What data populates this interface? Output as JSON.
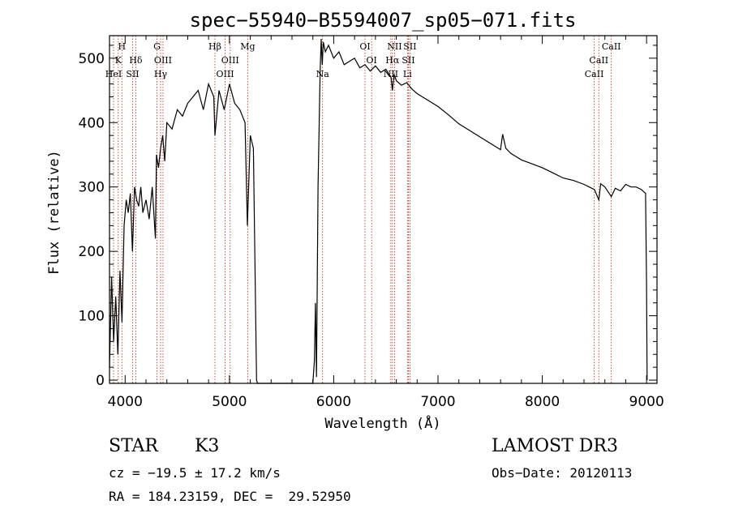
{
  "chart_data": {
    "type": "line",
    "title": "spec−55940−B5594007_sp05−071.fits",
    "xlabel": "Wavelength (Å)",
    "ylabel": "Flux (relative)",
    "xlim": [
      3850,
      9100
    ],
    "ylim": [
      -5,
      535
    ],
    "xticks": [
      4000,
      5000,
      6000,
      7000,
      8000,
      9000
    ],
    "yticks": [
      0,
      100,
      200,
      300,
      400,
      500
    ],
    "series": [
      {
        "name": "flux",
        "x": [
          3850,
          3870,
          3890,
          3910,
          3930,
          3950,
          3970,
          3990,
          4010,
          4030,
          4050,
          4070,
          4090,
          4110,
          4130,
          4150,
          4170,
          4200,
          4230,
          4260,
          4290,
          4300,
          4320,
          4340,
          4360,
          4380,
          4400,
          4450,
          4500,
          4550,
          4600,
          4650,
          4700,
          4750,
          4800,
          4850,
          4861,
          4900,
          4950,
          5000,
          5050,
          5100,
          5150,
          5172,
          5200,
          5230,
          5260,
          5270,
          5800,
          5815,
          5825,
          5835,
          5850,
          5870,
          5880,
          5890,
          5900,
          5920,
          5950,
          6000,
          6050,
          6100,
          6150,
          6200,
          6250,
          6300,
          6350,
          6400,
          6450,
          6500,
          6550,
          6563,
          6580,
          6600,
          6650,
          6700,
          6750,
          6800,
          6850,
          6900,
          7000,
          7100,
          7200,
          7300,
          7400,
          7500,
          7600,
          7620,
          7650,
          7700,
          7800,
          7900,
          8000,
          8100,
          8200,
          8300,
          8400,
          8450,
          8500,
          8542,
          8560,
          8600,
          8662,
          8700,
          8750,
          8800,
          8850,
          8900,
          8950,
          8990,
          9000,
          9005
        ],
        "y": [
          20,
          160,
          60,
          130,
          40,
          170,
          90,
          240,
          280,
          260,
          290,
          200,
          300,
          280,
          270,
          300,
          260,
          280,
          250,
          300,
          220,
          350,
          330,
          360,
          380,
          340,
          400,
          390,
          420,
          410,
          430,
          440,
          450,
          420,
          460,
          440,
          380,
          450,
          420,
          460,
          430,
          420,
          400,
          240,
          380,
          360,
          0,
          -5,
          -5,
          30,
          120,
          5,
          300,
          480,
          530,
          490,
          525,
          510,
          520,
          500,
          510,
          490,
          495,
          500,
          485,
          490,
          480,
          488,
          478,
          483,
          470,
          450,
          475,
          465,
          458,
          462,
          452,
          445,
          440,
          435,
          425,
          412,
          398,
          388,
          378,
          368,
          358,
          382,
          360,
          352,
          342,
          336,
          330,
          322,
          314,
          310,
          304,
          300,
          296,
          280,
          305,
          300,
          285,
          298,
          294,
          304,
          300,
          300,
          296,
          290,
          150,
          0
        ]
      }
    ],
    "line_markers": [
      {
        "wl": 3889,
        "row": 3,
        "label": "HeI"
      },
      {
        "wl": 3934,
        "row": 2,
        "label": "K"
      },
      {
        "wl": 3969,
        "row": 1,
        "label": "H"
      },
      {
        "wl": 4072,
        "row": 3,
        "label": "SII"
      },
      {
        "wl": 4102,
        "row": 2,
        "label": "Hδ"
      },
      {
        "wl": 4305,
        "row": 1,
        "label": "G"
      },
      {
        "wl": 4340,
        "row": 3,
        "label": "Hγ"
      },
      {
        "wl": 4363,
        "row": 2,
        "label": "OIII"
      },
      {
        "wl": 4861,
        "row": 1,
        "label": "Hβ"
      },
      {
        "wl": 4959,
        "row": 3,
        "label": "OIII"
      },
      {
        "wl": 5007,
        "row": 2,
        "label": "OIII"
      },
      {
        "wl": 5175,
        "row": 1,
        "label": "Mg"
      },
      {
        "wl": 5893,
        "row": 3,
        "label": "Na"
      },
      {
        "wl": 6300,
        "row": 1,
        "label": "OI"
      },
      {
        "wl": 6364,
        "row": 2,
        "label": "OI"
      },
      {
        "wl": 6548,
        "row": 3,
        "label": "NII"
      },
      {
        "wl": 6563,
        "row": 2,
        "label": "Hα"
      },
      {
        "wl": 6583,
        "row": 1,
        "label": "NII"
      },
      {
        "wl": 6707,
        "row": 3,
        "label": "Li"
      },
      {
        "wl": 6716,
        "row": 2,
        "label": "SII"
      },
      {
        "wl": 6731,
        "row": 1,
        "label": "SII"
      },
      {
        "wl": 8498,
        "row": 3,
        "label": "CaII"
      },
      {
        "wl": 8542,
        "row": 2,
        "label": "CaII"
      },
      {
        "wl": 8662,
        "row": 1,
        "label": "CaII"
      }
    ]
  },
  "footer": {
    "class_label": "STAR",
    "subclass": "K3",
    "survey": "LAMOST DR3",
    "cz_line": "cz = −19.5 ± 17.2 km/s",
    "obs_date": "Obs−Date: 20120113",
    "coords": "RA = 184.23159, DEC =  29.52950"
  },
  "colors": {
    "spectrum": "#000000",
    "marker": "#cc2200",
    "axes": "#000000"
  }
}
